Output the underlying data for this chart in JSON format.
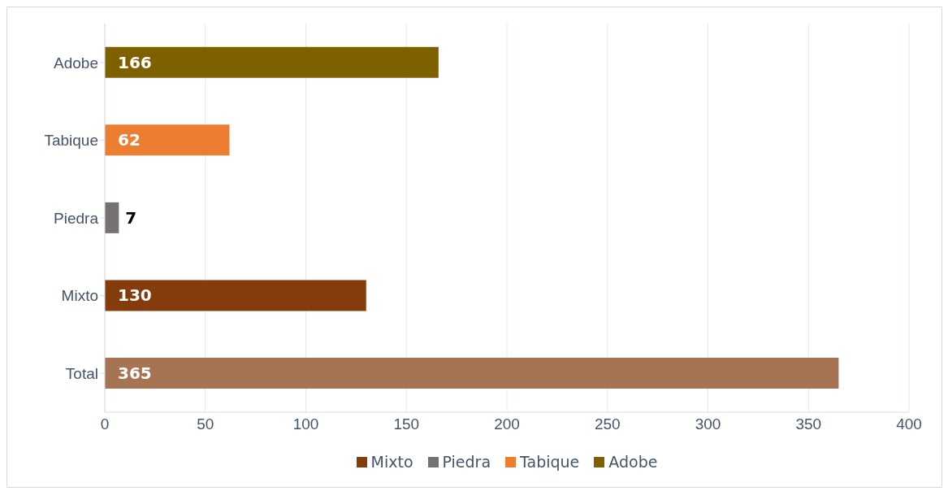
{
  "chart_data": {
    "type": "bar",
    "orientation": "horizontal",
    "stacked": true,
    "categories": [
      "Adobe",
      "Tabique",
      "Piedra",
      "Mixto",
      "Total"
    ],
    "series": [
      {
        "name": "Mixto",
        "color": "#843c0c",
        "values": [
          null,
          null,
          null,
          130,
          null
        ]
      },
      {
        "name": "Piedra",
        "color": "#767171",
        "values": [
          null,
          null,
          7,
          null,
          null
        ]
      },
      {
        "name": "Tabique",
        "color": "#ed7d31",
        "values": [
          null,
          62,
          null,
          null,
          null
        ]
      },
      {
        "name": "Adobe",
        "color": "#7f6000",
        "values": [
          166,
          null,
          null,
          null,
          null
        ]
      },
      {
        "color": "#a67452",
        "values": [
          null,
          null,
          null,
          null,
          365
        ]
      }
    ],
    "xlim": [
      0,
      400
    ],
    "xticks": [
      0,
      50,
      100,
      150,
      200,
      250,
      300,
      350,
      400
    ],
    "grid": "x",
    "legend": "bottom",
    "data_labels": true
  }
}
